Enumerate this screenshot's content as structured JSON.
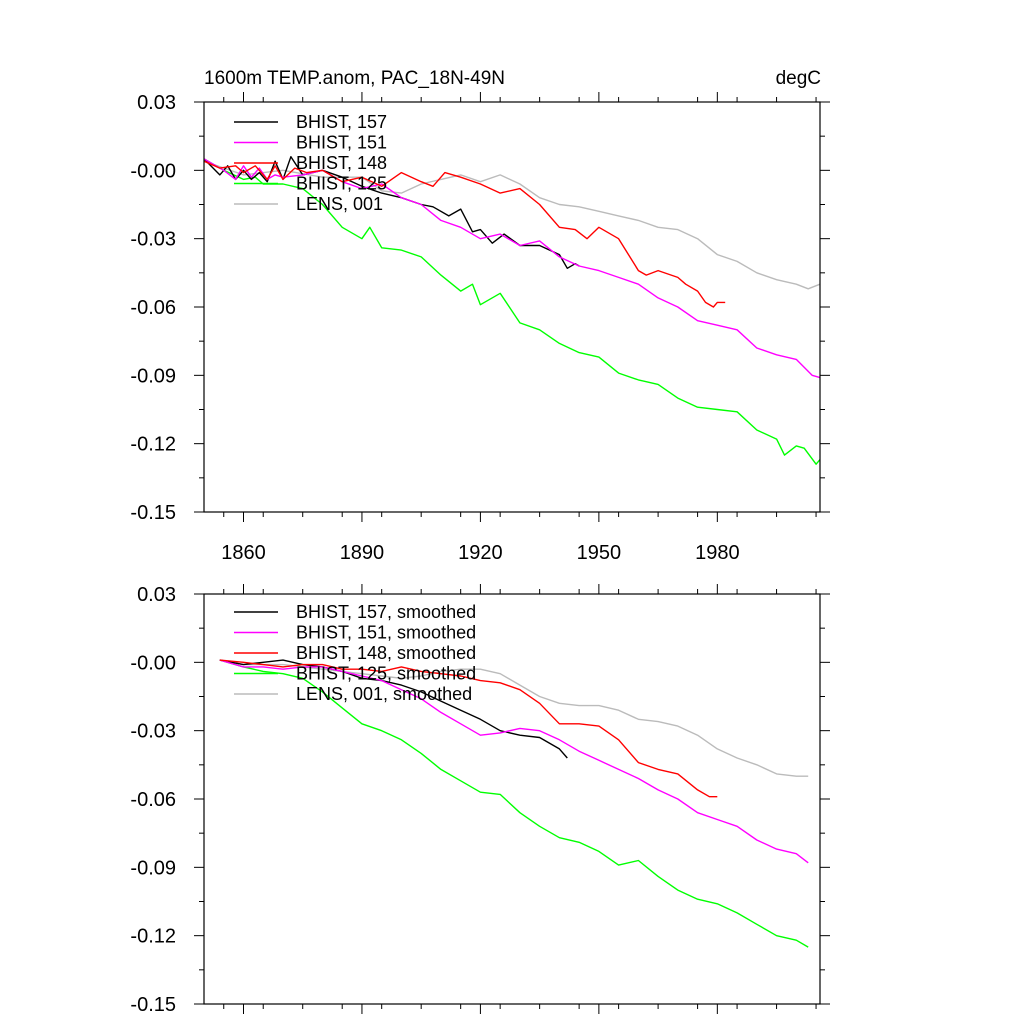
{
  "chart_data": [
    {
      "type": "line",
      "title_left": "1600m TEMP.anom, PAC_18N-49N",
      "title_right": "degC",
      "xlabel": "",
      "ylabel": "",
      "xlim": [
        1850,
        2006
      ],
      "ylim": [
        -0.15,
        0.03
      ],
      "xticks": [
        1860,
        1890,
        1920,
        1950,
        1980
      ],
      "xtick_labels": [
        "1860",
        "1890",
        "1920",
        "1950",
        "1980"
      ],
      "yticks": [
        0.03,
        0.0,
        -0.03,
        -0.06,
        -0.09,
        -0.12,
        -0.15
      ],
      "ytick_labels": [
        "0.03",
        "-0.00",
        "-0.03",
        "-0.06",
        "-0.09",
        "-0.12",
        "-0.15"
      ],
      "grid": false,
      "legend_position": "top-left",
      "series": [
        {
          "name": "BHIST, 157",
          "color": "#000000",
          "x": [
            1850,
            1854,
            1856,
            1858,
            1860,
            1862,
            1864,
            1866,
            1868,
            1870,
            1872,
            1875,
            1880,
            1885,
            1890,
            1895,
            1900,
            1905,
            1908,
            1912,
            1915,
            1918,
            1920,
            1923,
            1926,
            1930,
            1935,
            1940,
            1942,
            1944,
            1945
          ],
          "y": [
            0.005,
            -0.002,
            0.002,
            -0.004,
            0.0,
            -0.004,
            -0.001,
            -0.005,
            0.004,
            -0.004,
            0.006,
            -0.002,
            0.0,
            -0.003,
            -0.007,
            -0.01,
            -0.012,
            -0.015,
            -0.016,
            -0.02,
            -0.017,
            -0.027,
            -0.026,
            -0.032,
            -0.028,
            -0.033,
            -0.033,
            -0.037,
            -0.043,
            -0.041,
            -0.042
          ]
        },
        {
          "name": "BHIST, 151",
          "color": "#ff00ff",
          "x": [
            1850,
            1855,
            1858,
            1860,
            1862,
            1864,
            1866,
            1868,
            1870,
            1875,
            1880,
            1885,
            1890,
            1895,
            1900,
            1905,
            1910,
            1915,
            1920,
            1925,
            1930,
            1935,
            1940,
            1945,
            1950,
            1955,
            1960,
            1965,
            1970,
            1975,
            1980,
            1985,
            1990,
            1995,
            2000,
            2004,
            2006
          ],
          "y": [
            0.005,
            0.0,
            -0.004,
            0.002,
            -0.003,
            0.001,
            -0.004,
            -0.002,
            -0.003,
            -0.002,
            0.0,
            -0.005,
            -0.008,
            -0.006,
            -0.012,
            -0.015,
            -0.022,
            -0.025,
            -0.03,
            -0.028,
            -0.033,
            -0.031,
            -0.038,
            -0.042,
            -0.044,
            -0.047,
            -0.05,
            -0.056,
            -0.06,
            -0.066,
            -0.068,
            -0.07,
            -0.078,
            -0.081,
            -0.083,
            -0.09,
            -0.091
          ]
        },
        {
          "name": "BHIST, 148",
          "color": "#ff0000",
          "x": [
            1850,
            1854,
            1858,
            1860,
            1863,
            1866,
            1868,
            1870,
            1873,
            1876,
            1880,
            1885,
            1890,
            1895,
            1900,
            1905,
            1908,
            1911,
            1915,
            1920,
            1925,
            1930,
            1935,
            1940,
            1944,
            1947,
            1950,
            1955,
            1960,
            1962,
            1965,
            1970,
            1972,
            1975,
            1977,
            1979,
            1980,
            1982
          ],
          "y": [
            0.004,
            0.001,
            0.002,
            -0.001,
            0.002,
            -0.004,
            0.002,
            -0.004,
            0.001,
            -0.001,
            0.0,
            -0.005,
            -0.003,
            -0.007,
            -0.001,
            -0.005,
            -0.007,
            -0.001,
            -0.003,
            -0.006,
            -0.01,
            -0.008,
            -0.015,
            -0.025,
            -0.026,
            -0.03,
            -0.025,
            -0.03,
            -0.044,
            -0.046,
            -0.044,
            -0.047,
            -0.05,
            -0.053,
            -0.058,
            -0.06,
            -0.058,
            -0.058
          ]
        },
        {
          "name": "BHIST, 125",
          "color": "#00ff00",
          "x": [
            1850,
            1855,
            1860,
            1863,
            1865,
            1870,
            1875,
            1880,
            1885,
            1890,
            1892,
            1895,
            1900,
            1905,
            1910,
            1915,
            1918,
            1920,
            1925,
            1930,
            1935,
            1940,
            1945,
            1950,
            1955,
            1960,
            1965,
            1970,
            1975,
            1980,
            1985,
            1990,
            1995,
            1997,
            2000,
            2002,
            2005,
            2006
          ],
          "y": [
            0.005,
            0.0,
            -0.004,
            -0.003,
            -0.006,
            -0.006,
            -0.008,
            -0.015,
            -0.025,
            -0.03,
            -0.025,
            -0.034,
            -0.035,
            -0.038,
            -0.046,
            -0.053,
            -0.05,
            -0.059,
            -0.054,
            -0.067,
            -0.07,
            -0.076,
            -0.08,
            -0.082,
            -0.089,
            -0.092,
            -0.094,
            -0.1,
            -0.104,
            -0.105,
            -0.106,
            -0.114,
            -0.118,
            -0.125,
            -0.121,
            -0.122,
            -0.129,
            -0.127
          ]
        },
        {
          "name": "LENS, 001",
          "color": "#bbbbbb",
          "x": [
            1850,
            1860,
            1870,
            1880,
            1890,
            1895,
            1900,
            1905,
            1910,
            1915,
            1920,
            1925,
            1930,
            1935,
            1940,
            1945,
            1950,
            1955,
            1960,
            1965,
            1970,
            1975,
            1980,
            1985,
            1990,
            1995,
            2000,
            2003,
            2006
          ],
          "y": [
            0.004,
            -0.002,
            0.0,
            -0.003,
            -0.003,
            -0.009,
            -0.01,
            -0.006,
            -0.004,
            -0.002,
            -0.005,
            -0.002,
            -0.006,
            -0.012,
            -0.015,
            -0.016,
            -0.018,
            -0.02,
            -0.022,
            -0.025,
            -0.026,
            -0.03,
            -0.037,
            -0.04,
            -0.045,
            -0.048,
            -0.05,
            -0.052,
            -0.05
          ]
        }
      ]
    },
    {
      "type": "line",
      "title_left": "",
      "title_right": "",
      "xlabel": "",
      "ylabel": "",
      "xlim": [
        1850,
        2006
      ],
      "ylim": [
        -0.15,
        0.03
      ],
      "xticks": [
        1860,
        1890,
        1920,
        1950,
        1980
      ],
      "yticks": [
        0.03,
        0.0,
        -0.03,
        -0.06,
        -0.09,
        -0.12,
        -0.15
      ],
      "ytick_labels": [
        "0.03",
        "-0.00",
        "-0.03",
        "-0.06",
        "-0.09",
        "-0.12",
        "-0.15"
      ],
      "grid": false,
      "legend_position": "top-left",
      "series": [
        {
          "name": "BHIST, 157, smoothed",
          "color": "#000000",
          "x": [
            1854,
            1860,
            1865,
            1870,
            1875,
            1880,
            1885,
            1890,
            1895,
            1900,
            1905,
            1910,
            1915,
            1920,
            1925,
            1930,
            1935,
            1940,
            1942
          ],
          "y": [
            0.001,
            -0.001,
            0.0,
            0.001,
            -0.001,
            -0.002,
            -0.004,
            -0.007,
            -0.008,
            -0.01,
            -0.013,
            -0.017,
            -0.021,
            -0.025,
            -0.03,
            -0.032,
            -0.033,
            -0.038,
            -0.042
          ]
        },
        {
          "name": "BHIST, 151, smoothed",
          "color": "#ff00ff",
          "x": [
            1854,
            1860,
            1865,
            1870,
            1875,
            1880,
            1885,
            1890,
            1895,
            1900,
            1905,
            1910,
            1915,
            1920,
            1925,
            1930,
            1935,
            1940,
            1945,
            1950,
            1955,
            1960,
            1965,
            1970,
            1975,
            1980,
            1985,
            1990,
            1995,
            2000,
            2003
          ],
          "y": [
            0.001,
            -0.002,
            -0.002,
            -0.003,
            -0.002,
            -0.002,
            -0.004,
            -0.006,
            -0.008,
            -0.012,
            -0.016,
            -0.022,
            -0.027,
            -0.032,
            -0.031,
            -0.029,
            -0.03,
            -0.034,
            -0.039,
            -0.043,
            -0.047,
            -0.051,
            -0.056,
            -0.06,
            -0.066,
            -0.069,
            -0.072,
            -0.078,
            -0.082,
            -0.084,
            -0.088
          ]
        },
        {
          "name": "BHIST, 148, smoothed",
          "color": "#ff0000",
          "x": [
            1854,
            1860,
            1865,
            1870,
            1875,
            1880,
            1885,
            1890,
            1895,
            1900,
            1905,
            1910,
            1915,
            1920,
            1925,
            1930,
            1935,
            1940,
            1945,
            1950,
            1955,
            1960,
            1965,
            1970,
            1975,
            1978,
            1980
          ],
          "y": [
            0.001,
            0.0,
            -0.001,
            -0.002,
            -0.001,
            -0.001,
            -0.003,
            -0.003,
            -0.004,
            -0.002,
            -0.004,
            -0.005,
            -0.006,
            -0.008,
            -0.009,
            -0.012,
            -0.018,
            -0.027,
            -0.027,
            -0.028,
            -0.034,
            -0.044,
            -0.047,
            -0.049,
            -0.056,
            -0.059,
            -0.059
          ]
        },
        {
          "name": "BHIST, 125, smoothed",
          "color": "#00ff00",
          "x": [
            1854,
            1860,
            1865,
            1870,
            1875,
            1880,
            1885,
            1890,
            1895,
            1900,
            1905,
            1910,
            1915,
            1920,
            1925,
            1930,
            1935,
            1940,
            1945,
            1950,
            1955,
            1960,
            1965,
            1970,
            1975,
            1980,
            1985,
            1990,
            1995,
            2000,
            2003
          ],
          "y": [
            0.001,
            -0.002,
            -0.004,
            -0.005,
            -0.007,
            -0.013,
            -0.02,
            -0.027,
            -0.03,
            -0.034,
            -0.04,
            -0.047,
            -0.052,
            -0.057,
            -0.058,
            -0.066,
            -0.072,
            -0.077,
            -0.079,
            -0.083,
            -0.089,
            -0.087,
            -0.094,
            -0.1,
            -0.104,
            -0.106,
            -0.11,
            -0.115,
            -0.12,
            -0.122,
            -0.125
          ]
        },
        {
          "name": "LENS, 001, smoothed",
          "color": "#bbbbbb",
          "x": [
            1854,
            1860,
            1870,
            1880,
            1890,
            1895,
            1900,
            1905,
            1910,
            1915,
            1920,
            1925,
            1930,
            1935,
            1940,
            1945,
            1950,
            1955,
            1960,
            1965,
            1970,
            1975,
            1980,
            1985,
            1990,
            1995,
            2000,
            2003
          ],
          "y": [
            0.001,
            -0.001,
            -0.001,
            -0.003,
            -0.005,
            -0.006,
            -0.007,
            -0.006,
            -0.004,
            -0.003,
            -0.003,
            -0.005,
            -0.01,
            -0.015,
            -0.018,
            -0.019,
            -0.019,
            -0.021,
            -0.025,
            -0.026,
            -0.028,
            -0.032,
            -0.038,
            -0.042,
            -0.045,
            -0.049,
            -0.05,
            -0.05
          ]
        }
      ]
    }
  ]
}
